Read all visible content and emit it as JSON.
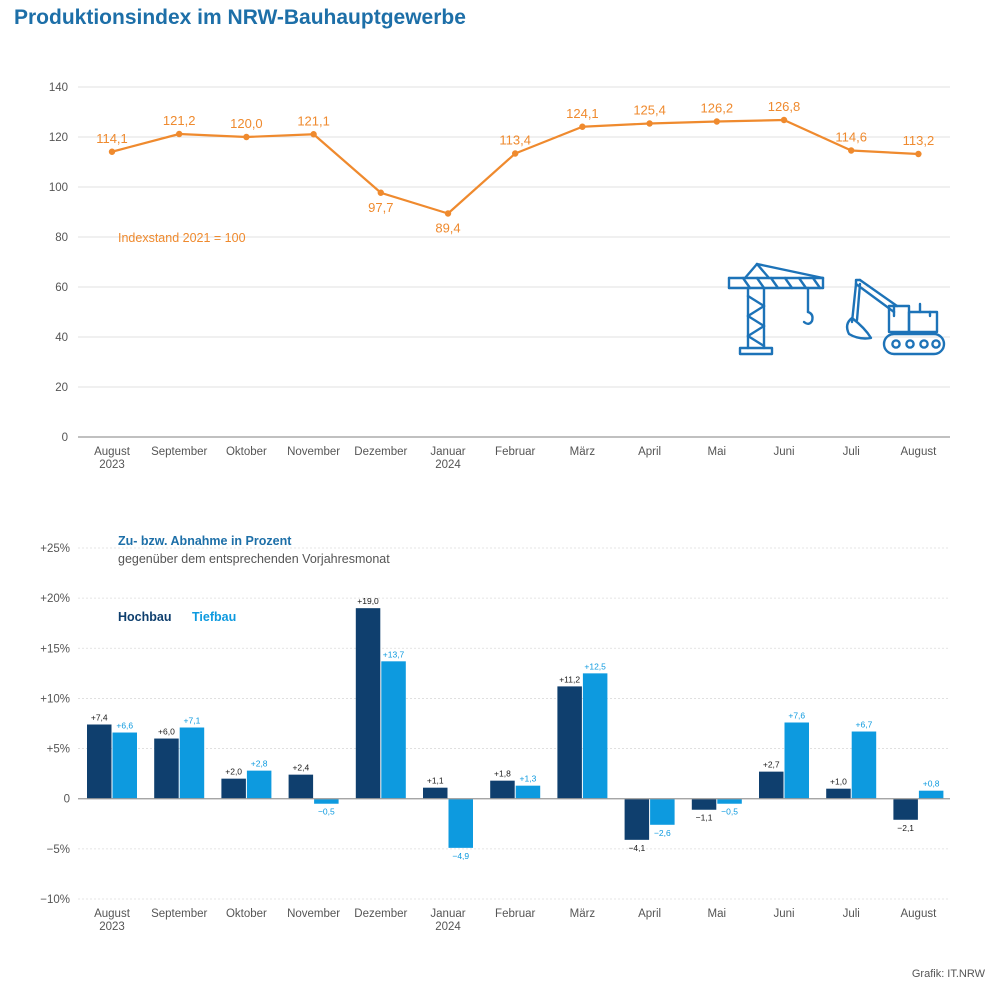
{
  "title": "Produktionsindex im NRW-Bauhauptgewerbe",
  "source": "Grafik: IT.NRW",
  "colors": {
    "line": "#ef8a2e",
    "hochbau": "#0f3f6e",
    "tiefbau": "#0d9adf",
    "title": "#1d6fa8",
    "axis_text": "#555555",
    "icon": "#1d73b8"
  },
  "icons": [
    "crane-icon",
    "excavator-icon"
  ],
  "chart_data": [
    {
      "type": "line",
      "categories": [
        "August\n2023",
        "September",
        "Oktober",
        "November",
        "Dezember",
        "Januar\n2024",
        "Februar",
        "März",
        "April",
        "Mai",
        "Juni",
        "Juli",
        "August"
      ],
      "series": [
        {
          "values": [
            114.1,
            121.2,
            120.0,
            121.1,
            97.7,
            89.4,
            113.4,
            124.1,
            125.4,
            126.2,
            126.8,
            114.6,
            113.2
          ],
          "labels": [
            "114,1",
            "121,2",
            "120,0",
            "121,1",
            "97,7",
            "89,4",
            "113,4",
            "124,1",
            "125,4",
            "126,2",
            "126,8",
            "114,6",
            "113,2"
          ]
        }
      ],
      "annotation": "Indexstand 2021 = 100",
      "ylim": [
        0,
        140
      ],
      "yticks": [
        0,
        20,
        40,
        60,
        80,
        100,
        120,
        140
      ],
      "yticklabels": [
        "0",
        "20",
        "40",
        "60",
        "80",
        "100",
        "120",
        "140"
      ],
      "grid": true
    },
    {
      "type": "bar",
      "subtitle": "Zu- bzw. Abnahme in Prozent",
      "subtitle2": "gegenüber dem entsprechenden Vorjahresmonat",
      "categories": [
        "August\n2023",
        "September",
        "Oktober",
        "November",
        "Dezember",
        "Januar\n2024",
        "Februar",
        "März",
        "April",
        "Mai",
        "Juni",
        "Juli",
        "August"
      ],
      "series": [
        {
          "name": "Hochbau",
          "values": [
            7.4,
            6.0,
            2.0,
            2.4,
            19.0,
            1.1,
            1.8,
            11.2,
            -4.1,
            -1.1,
            2.7,
            1.0,
            -2.1
          ],
          "labels": [
            "+7,4",
            "+6,0",
            "+2,0",
            "+2,4",
            "+19,0",
            "+1,1",
            "+1,8",
            "+11,2",
            "−4,1",
            "−1,1",
            "+2,7",
            "+1,0",
            "−2,1"
          ]
        },
        {
          "name": "Tiefbau",
          "values": [
            6.6,
            7.1,
            2.8,
            -0.5,
            13.7,
            -4.9,
            1.3,
            12.5,
            -2.6,
            -0.5,
            7.6,
            6.7,
            0.8
          ],
          "labels": [
            "+6,6",
            "+7,1",
            "+2,8",
            "−0,5",
            "+13,7",
            "−4,9",
            "+1,3",
            "+12,5",
            "−2,6",
            "−0,5",
            "+7,6",
            "+6,7",
            "+0,8"
          ]
        }
      ],
      "ylim": [
        -10,
        25
      ],
      "yticks": [
        -10,
        -5,
        0,
        5,
        10,
        15,
        20,
        25
      ],
      "yticklabels": [
        "−10%",
        "−5%",
        "0",
        "+5%",
        "+10%",
        "+15%",
        "+20%",
        "+25%"
      ],
      "legend_position": "top-left",
      "grid": true
    }
  ]
}
